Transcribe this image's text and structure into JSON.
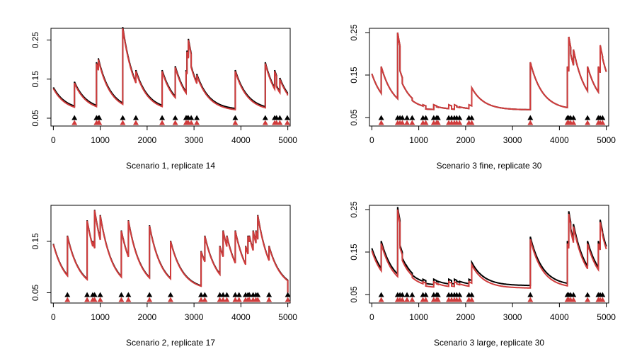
{
  "chart_data": [
    {
      "type": "line",
      "title": "Scenario 1, replicate 14",
      "xlabel": "",
      "ylabel": "",
      "xlim": [
        0,
        5000
      ],
      "ylim": [
        0.03,
        0.28
      ],
      "xticks": [
        0,
        1000,
        2000,
        3000,
        4000,
        5000
      ],
      "yticks": [
        0.05,
        0.15,
        0.25
      ],
      "decay": 0.08,
      "level": 0.068,
      "events": [
        450,
        920,
        960,
        980,
        1480,
        1760,
        2320,
        2600,
        2830,
        2850,
        2880,
        2940,
        3060,
        3880,
        4520,
        4720,
        4760,
        4830,
        4990
      ],
      "peaks": [
        0.14,
        0.19,
        0.2,
        0.19,
        0.28,
        0.17,
        0.17,
        0.18,
        0.17,
        0.22,
        0.25,
        0.18,
        0.16,
        0.17,
        0.19,
        0.17,
        0.13,
        0.15,
        0.11
      ],
      "black_offset": 0.003,
      "series": [
        {
          "name": "",
          "color": "#000000"
        },
        {
          "name": "",
          "color": "#d03c3c"
        }
      ],
      "grid": false
    },
    {
      "type": "line",
      "title": "Scenario 3 fine, replicate 30",
      "xlabel": "",
      "ylabel": "",
      "xlim": [
        0,
        5000
      ],
      "ylim": [
        0.03,
        0.26
      ],
      "xticks": [
        0,
        1000,
        2000,
        3000,
        4000,
        5000
      ],
      "yticks": [
        0.05,
        0.15,
        0.25
      ],
      "decay": 0.08,
      "level": 0.068,
      "events": [
        200,
        550,
        600,
        650,
        750,
        860,
        1090,
        1150,
        1320,
        1380,
        1410,
        1640,
        1700,
        1760,
        1810,
        1870,
        2070,
        2130,
        3380,
        4170,
        4200,
        4240,
        4300,
        4600,
        4830,
        4870,
        4920
      ],
      "peaks": [
        0.17,
        0.25,
        0.16,
        0.13,
        0.11,
        0.09,
        0.08,
        0.07,
        0.08,
        0.075,
        0.075,
        0.08,
        0.07,
        0.08,
        0.075,
        0.075,
        0.08,
        0.12,
        0.18,
        0.17,
        0.24,
        0.2,
        0.21,
        0.17,
        0.17,
        0.22,
        0.19
      ],
      "black_offset": 0,
      "series": [
        {
          "name": "",
          "color": "#000000"
        },
        {
          "name": "",
          "color": "#d03c3c"
        }
      ],
      "grid": false
    },
    {
      "type": "line",
      "title": "Scenario 2, replicate 17",
      "xlabel": "",
      "ylabel": "",
      "xlim": [
        0,
        5000
      ],
      "ylim": [
        0.03,
        0.22
      ],
      "xticks": [
        0,
        1000,
        2000,
        3000,
        4000,
        5000
      ],
      "yticks": [
        0.05,
        0.15
      ],
      "decay": 0.08,
      "level": 0.055,
      "events": [
        300,
        720,
        840,
        880,
        1000,
        1450,
        1600,
        2050,
        2500,
        3150,
        3230,
        3550,
        3620,
        3700,
        3880,
        3960,
        4100,
        4150,
        4180,
        4260,
        4320,
        4360,
        4600,
        5000
      ],
      "peaks": [
        0.16,
        0.19,
        0.15,
        0.21,
        0.2,
        0.17,
        0.19,
        0.18,
        0.15,
        0.13,
        0.16,
        0.14,
        0.17,
        0.16,
        0.17,
        0.14,
        0.14,
        0.16,
        0.16,
        0.17,
        0.17,
        0.2,
        0.14,
        0.05
      ],
      "black_offset": 0.001,
      "series": [
        {
          "name": "",
          "color": "#000000"
        },
        {
          "name": "",
          "color": "#d03c3c"
        }
      ],
      "grid": false
    },
    {
      "type": "line",
      "title": "Scenario 3 large, replicate 30",
      "xlabel": "",
      "ylabel": "",
      "xlim": [
        0,
        5000
      ],
      "ylim": [
        0.03,
        0.26
      ],
      "xticks": [
        0,
        1000,
        2000,
        3000,
        4000,
        5000
      ],
      "yticks": [
        0.05,
        0.15,
        0.25
      ],
      "decay": 0.08,
      "level": 0.065,
      "events": [
        200,
        550,
        600,
        650,
        750,
        860,
        1090,
        1150,
        1320,
        1380,
        1410,
        1640,
        1700,
        1760,
        1810,
        1870,
        2070,
        2130,
        3380,
        4170,
        4200,
        4240,
        4300,
        4600,
        4830,
        4870,
        4920
      ],
      "peaks": [
        0.17,
        0.25,
        0.16,
        0.13,
        0.11,
        0.09,
        0.08,
        0.07,
        0.08,
        0.075,
        0.075,
        0.08,
        0.07,
        0.08,
        0.075,
        0.075,
        0.08,
        0.12,
        0.18,
        0.17,
        0.24,
        0.2,
        0.21,
        0.17,
        0.17,
        0.22,
        0.19
      ],
      "black_offset": 0.006,
      "series": [
        {
          "name": "",
          "color": "#000000"
        },
        {
          "name": "",
          "color": "#d03c3c"
        }
      ],
      "grid": false
    }
  ]
}
